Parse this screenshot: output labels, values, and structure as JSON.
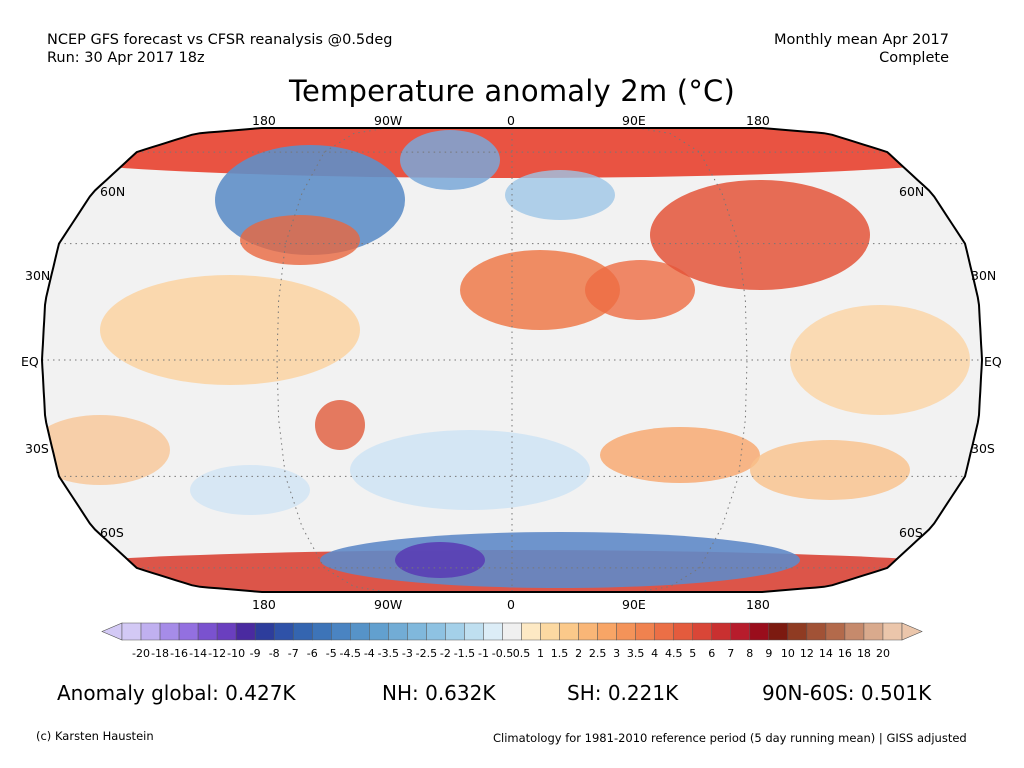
{
  "header": {
    "left_line1": "NCEP GFS forecast vs CFSR reanalysis @0.5deg",
    "left_line2": "Run: 30 Apr 2017 18z",
    "right_line1": "Monthly mean Apr 2017",
    "right_line2": "Complete"
  },
  "title": "Temperature anomaly 2m (°C)",
  "map": {
    "projection": "Robinson",
    "lon_labels_top": [
      "180",
      "90W",
      "0",
      "90E",
      "180"
    ],
    "lon_labels_bottom": [
      "180",
      "90W",
      "0",
      "90E",
      "180"
    ],
    "lat_labels_left": [
      "60N",
      "30N",
      "EQ",
      "30S",
      "60S"
    ],
    "lat_labels_right": [
      "60N",
      "30N",
      "EQ",
      "30S",
      "60S"
    ],
    "background_color": "#f2f2f2",
    "warm_color": "#f4a870",
    "cold_color": "#8fb6dc"
  },
  "colorbar": {
    "labels": [
      "-20",
      "-18",
      "-16",
      "-14",
      "-12",
      "-10",
      "-9",
      "-8",
      "-7",
      "-6",
      "-5",
      "-4.5",
      "-4",
      "-3.5",
      "-3",
      "-2.5",
      "-2",
      "-1.5",
      "-1",
      "-0.5",
      "0.5",
      "1",
      "1.5",
      "2",
      "2.5",
      "3",
      "3.5",
      "4",
      "4.5",
      "5",
      "6",
      "7",
      "8",
      "9",
      "10",
      "12",
      "14",
      "16",
      "18",
      "20"
    ],
    "colors": [
      "#d3c9f5",
      "#c0b0f0",
      "#a68ce8",
      "#9370e0",
      "#7a52cf",
      "#6a3fbf",
      "#4a2aa0",
      "#2d3d9c",
      "#2f52a8",
      "#3465b0",
      "#3d74b8",
      "#4a84c2",
      "#5693c8",
      "#62a0cf",
      "#72acd5",
      "#80b8dc",
      "#8ec2e2",
      "#a4d0e9",
      "#bfdff0",
      "#dcedf7",
      "#f0f0f0",
      "#fde9c4",
      "#fcd9a2",
      "#fbc98a",
      "#f9b677",
      "#f8a566",
      "#f49359",
      "#f0824f",
      "#eb6f46",
      "#e45b3d",
      "#d94637",
      "#c93030",
      "#b71c2c",
      "#9a0d1c",
      "#7c1a10",
      "#8f3b22",
      "#a15236",
      "#b36a4b",
      "#c68a6c",
      "#d9aa8d",
      "#ebc6ab"
    ]
  },
  "stats": {
    "global": "Anomaly global: 0.427K",
    "nh": "NH: 0.632K",
    "sh": "SH: 0.221K",
    "arctic": "90N-60S: 0.501K"
  },
  "footer": {
    "left": "(c) Karsten Haustein",
    "right": "Climatology for 1981-2010 reference period (5 day running mean) | GISS adjusted"
  }
}
